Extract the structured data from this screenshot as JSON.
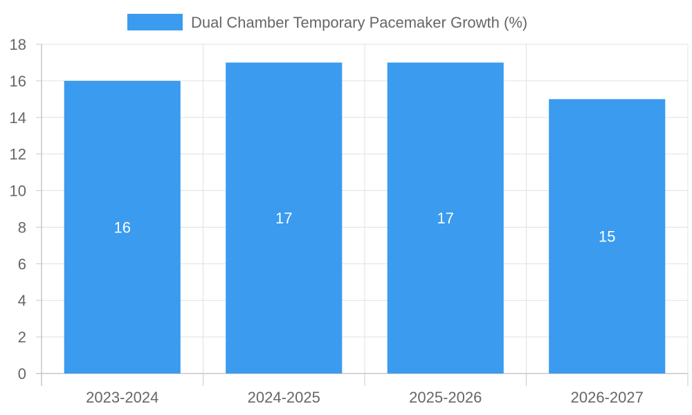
{
  "chart_data": {
    "type": "bar",
    "title": "",
    "xlabel": "",
    "ylabel": "",
    "categories": [
      "2023-2024",
      "2024-2025",
      "2025-2026",
      "2026-2027"
    ],
    "series": [
      {
        "name": "Dual Chamber Temporary Pacemaker Growth (%)",
        "values": [
          16,
          17,
          17,
          15
        ]
      }
    ],
    "data_labels": [
      "16",
      "17",
      "17",
      "15"
    ],
    "y_ticks": [
      "0",
      "2",
      "4",
      "6",
      "8",
      "10",
      "12",
      "14",
      "16",
      "18"
    ],
    "ylim": [
      0,
      18
    ],
    "grid": true,
    "legend_position": "top-center"
  },
  "colors": {
    "bar": "#3a9bef",
    "grid": "#e0e0e0",
    "axis": "#c8c8c8",
    "text": "#666666",
    "label": "#ffffff"
  }
}
